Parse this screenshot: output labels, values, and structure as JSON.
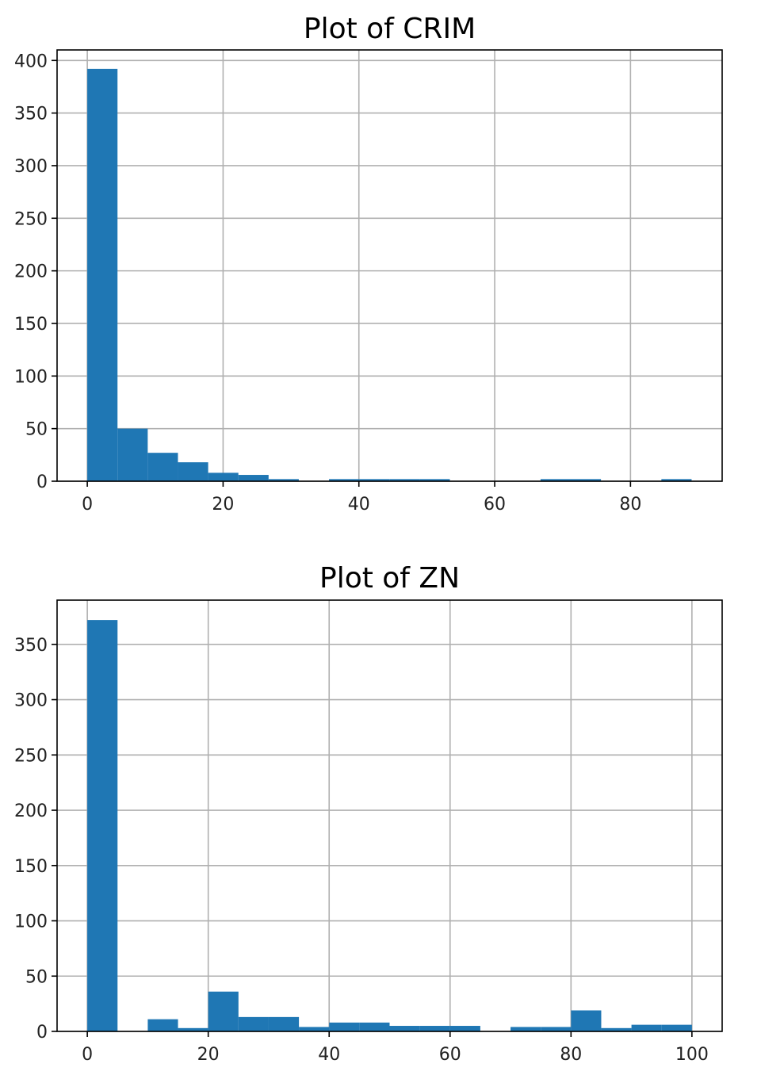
{
  "chart_data": [
    {
      "type": "bar",
      "title": "Plot of CRIM",
      "xlabel": "",
      "ylabel": "",
      "xlim": [
        -4.45,
        93.5
      ],
      "ylim": [
        0,
        410
      ],
      "xticks": [
        0,
        20,
        40,
        60,
        80
      ],
      "yticks": [
        0,
        50,
        100,
        150,
        200,
        250,
        300,
        350,
        400
      ],
      "grid": true,
      "bin_edges": [
        0.0,
        4.45,
        8.9,
        13.35,
        17.8,
        22.25,
        26.7,
        31.15,
        35.6,
        40.05,
        44.5,
        48.95,
        53.4,
        57.85,
        62.3,
        66.75,
        71.2,
        75.65,
        80.1,
        84.55,
        89.0
      ],
      "values": [
        392,
        50,
        27,
        18,
        8,
        6,
        2,
        0,
        2,
        2,
        2,
        2,
        0,
        0,
        0,
        2,
        2,
        0,
        0,
        2
      ],
      "color": "#1f77b4"
    },
    {
      "type": "bar",
      "title": "Plot of ZN",
      "xlabel": "",
      "ylabel": "",
      "xlim": [
        -5,
        105
      ],
      "ylim": [
        0,
        390
      ],
      "xticks": [
        0,
        20,
        40,
        60,
        80,
        100
      ],
      "yticks": [
        0,
        50,
        100,
        150,
        200,
        250,
        300,
        350
      ],
      "grid": true,
      "bin_edges": [
        0,
        5,
        10,
        15,
        20,
        25,
        30,
        35,
        40,
        45,
        50,
        55,
        60,
        65,
        70,
        75,
        80,
        85,
        90,
        95,
        100
      ],
      "values": [
        372,
        0,
        11,
        3,
        36,
        13,
        13,
        4,
        8,
        8,
        5,
        5,
        5,
        0,
        4,
        4,
        19,
        3,
        6,
        6
      ],
      "color": "#1f77b4"
    }
  ]
}
